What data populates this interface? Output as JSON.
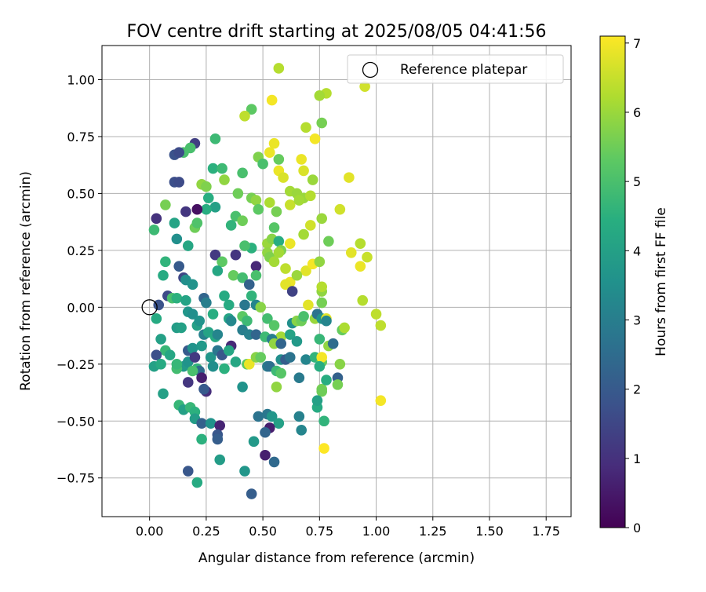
{
  "chart_data": {
    "type": "scatter",
    "title": "FOV centre drift starting at 2025/08/05 04:41:56",
    "xlabel": "Angular distance from reference (arcmin)",
    "ylabel": "Rotation from reference (arcmin)",
    "xlim": [
      -0.21,
      1.86
    ],
    "ylim": [
      -0.92,
      1.15
    ],
    "x_ticks": [
      "0.00",
      "0.25",
      "0.50",
      "0.75",
      "1.00",
      "1.25",
      "1.50",
      "1.75"
    ],
    "x_tick_values": [
      0,
      0.25,
      0.5,
      0.75,
      1.0,
      1.25,
      1.5,
      1.75
    ],
    "y_ticks": [
      "−0.75",
      "−0.50",
      "−0.25",
      "0.00",
      "0.25",
      "0.50",
      "0.75",
      "1.00"
    ],
    "y_tick_values": [
      -0.75,
      -0.5,
      -0.25,
      0,
      0.25,
      0.5,
      0.75,
      1.0
    ],
    "grid": true,
    "legend": {
      "position": "top-right",
      "label": "Reference platepar"
    },
    "reference_point": {
      "x": 0.0,
      "y": 0.0
    },
    "colorbar": {
      "label": "Hours from first FF file",
      "ticks": [
        "0",
        "1",
        "2",
        "3",
        "4",
        "5",
        "6",
        "7"
      ],
      "tick_values": [
        0,
        1,
        2,
        3,
        4,
        5,
        6,
        7
      ],
      "range": [
        0,
        7.1
      ],
      "colormap": "viridis"
    },
    "points": [
      [
        0.57,
        1.05,
        6.3
      ],
      [
        0.95,
        0.97,
        6.6
      ],
      [
        0.78,
        0.94,
        6.3
      ],
      [
        0.75,
        0.93,
        6.1
      ],
      [
        0.54,
        0.91,
        7.0
      ],
      [
        0.45,
        0.87,
        5.3
      ],
      [
        0.42,
        0.84,
        6.4
      ],
      [
        0.76,
        0.81,
        5.6
      ],
      [
        0.69,
        0.79,
        6.3
      ],
      [
        0.73,
        0.74,
        7.0
      ],
      [
        0.55,
        0.72,
        6.9
      ],
      [
        0.2,
        0.72,
        1.3
      ],
      [
        0.29,
        0.74,
        4.8
      ],
      [
        0.53,
        0.68,
        6.9
      ],
      [
        0.15,
        0.68,
        5.0
      ],
      [
        0.18,
        0.7,
        5.0
      ],
      [
        0.11,
        0.67,
        1.8
      ],
      [
        0.13,
        0.68,
        1.6
      ],
      [
        0.48,
        0.66,
        5.7
      ],
      [
        0.57,
        0.65,
        5.4
      ],
      [
        0.67,
        0.65,
        6.9
      ],
      [
        0.5,
        0.63,
        5.0
      ],
      [
        0.28,
        0.61,
        4.5
      ],
      [
        0.32,
        0.61,
        4.8
      ],
      [
        0.57,
        0.6,
        6.9
      ],
      [
        0.68,
        0.6,
        6.7
      ],
      [
        0.41,
        0.59,
        5.0
      ],
      [
        0.59,
        0.57,
        6.7
      ],
      [
        0.88,
        0.57,
        6.8
      ],
      [
        0.72,
        0.56,
        6.0
      ],
      [
        0.11,
        0.55,
        1.7
      ],
      [
        0.13,
        0.55,
        1.6
      ],
      [
        0.23,
        0.54,
        5.9
      ],
      [
        0.25,
        0.53,
        5.7
      ],
      [
        0.33,
        0.56,
        5.9
      ],
      [
        0.39,
        0.5,
        5.5
      ],
      [
        0.45,
        0.48,
        5.6
      ],
      [
        0.47,
        0.47,
        5.9
      ],
      [
        0.62,
        0.51,
        6.1
      ],
      [
        0.65,
        0.5,
        6.0
      ],
      [
        0.68,
        0.48,
        6.0
      ],
      [
        0.71,
        0.49,
        6.3
      ],
      [
        0.26,
        0.48,
        4.4
      ],
      [
        0.29,
        0.44,
        4.0
      ],
      [
        0.25,
        0.43,
        4.4
      ],
      [
        0.21,
        0.43,
        0.3
      ],
      [
        0.16,
        0.42,
        1.1
      ],
      [
        0.07,
        0.45,
        5.6
      ],
      [
        0.03,
        0.39,
        1.0
      ],
      [
        0.48,
        0.43,
        5.3
      ],
      [
        0.53,
        0.46,
        6.2
      ],
      [
        0.56,
        0.42,
        5.6
      ],
      [
        0.62,
        0.45,
        6.5
      ],
      [
        0.66,
        0.47,
        6.1
      ],
      [
        0.76,
        0.39,
        6.0
      ],
      [
        0.84,
        0.43,
        6.6
      ],
      [
        0.38,
        0.4,
        5.0
      ],
      [
        0.41,
        0.38,
        5.5
      ],
      [
        0.36,
        0.36,
        4.6
      ],
      [
        0.2,
        0.35,
        5.5
      ],
      [
        0.21,
        0.37,
        5.1
      ],
      [
        0.11,
        0.37,
        4.1
      ],
      [
        0.02,
        0.34,
        4.8
      ],
      [
        0.71,
        0.36,
        6.6
      ],
      [
        0.55,
        0.35,
        5.2
      ],
      [
        0.68,
        0.32,
        6.1
      ],
      [
        0.79,
        0.29,
        5.5
      ],
      [
        0.93,
        0.28,
        6.3
      ],
      [
        0.12,
        0.3,
        3.5
      ],
      [
        0.17,
        0.27,
        4.2
      ],
      [
        0.45,
        0.26,
        4.5
      ],
      [
        0.42,
        0.27,
        5.0
      ],
      [
        0.52,
        0.28,
        6.0
      ],
      [
        0.54,
        0.3,
        5.8
      ],
      [
        0.57,
        0.29,
        4.4
      ],
      [
        0.58,
        0.25,
        5.7
      ],
      [
        0.62,
        0.28,
        6.9
      ],
      [
        0.29,
        0.23,
        1.2
      ],
      [
        0.32,
        0.2,
        5.3
      ],
      [
        0.38,
        0.23,
        1.1
      ],
      [
        0.52,
        0.24,
        5.9
      ],
      [
        0.53,
        0.22,
        5.7
      ],
      [
        0.55,
        0.2,
        6.1
      ],
      [
        0.57,
        0.24,
        6.1
      ],
      [
        0.89,
        0.24,
        6.8
      ],
      [
        0.96,
        0.22,
        6.5
      ],
      [
        0.07,
        0.2,
        4.6
      ],
      [
        0.13,
        0.18,
        2.0
      ],
      [
        0.3,
        0.16,
        4.2
      ],
      [
        0.47,
        0.18,
        0.8
      ],
      [
        0.6,
        0.17,
        6.4
      ],
      [
        0.69,
        0.16,
        6.8
      ],
      [
        0.72,
        0.19,
        7.0
      ],
      [
        0.75,
        0.2,
        5.9
      ],
      [
        0.93,
        0.18,
        6.9
      ],
      [
        0.06,
        0.14,
        4.3
      ],
      [
        0.15,
        0.13,
        1.5
      ],
      [
        0.16,
        0.12,
        3.5
      ],
      [
        0.19,
        0.1,
        3.6
      ],
      [
        0.37,
        0.14,
        5.4
      ],
      [
        0.41,
        0.13,
        4.9
      ],
      [
        0.47,
        0.14,
        5.0
      ],
      [
        0.44,
        0.1,
        2.2
      ],
      [
        0.45,
        0.05,
        4.6
      ],
      [
        0.33,
        0.05,
        4.3
      ],
      [
        0.62,
        0.11,
        6.9
      ],
      [
        0.6,
        0.1,
        6.8
      ],
      [
        0.63,
        0.07,
        1.4
      ],
      [
        0.65,
        0.14,
        6.0
      ],
      [
        0.76,
        0.07,
        5.9
      ],
      [
        0.76,
        0.09,
        6.3
      ],
      [
        0.08,
        0.05,
        1.6
      ],
      [
        0.1,
        0.04,
        5.0
      ],
      [
        0.12,
        0.04,
        4.5
      ],
      [
        0.16,
        0.03,
        4.1
      ],
      [
        0.24,
        0.04,
        2.3
      ],
      [
        0.25,
        0.02,
        3.0
      ],
      [
        0.35,
        0.01,
        4.3
      ],
      [
        0.42,
        0.01,
        2.8
      ],
      [
        0.47,
        0.01,
        3.2
      ],
      [
        0.49,
        0.0,
        5.8
      ],
      [
        0.7,
        0.01,
        6.8
      ],
      [
        0.76,
        0.02,
        5.6
      ],
      [
        0.94,
        0.03,
        6.3
      ],
      [
        0.04,
        0.01,
        1.8
      ],
      [
        0.17,
        -0.02,
        3.7
      ],
      [
        0.19,
        -0.03,
        3.5
      ],
      [
        0.28,
        -0.03,
        4.4
      ],
      [
        0.35,
        -0.05,
        4.1
      ],
      [
        0.36,
        -0.06,
        3.3
      ],
      [
        0.41,
        -0.04,
        5.3
      ],
      [
        0.43,
        -0.06,
        4.8
      ],
      [
        0.52,
        -0.05,
        4.9
      ],
      [
        0.55,
        -0.08,
        5.2
      ],
      [
        0.63,
        -0.07,
        3.5
      ],
      [
        0.65,
        -0.06,
        5.8
      ],
      [
        0.67,
        -0.06,
        5.5
      ],
      [
        0.68,
        -0.04,
        5.0
      ],
      [
        0.73,
        -0.05,
        6.0
      ],
      [
        0.74,
        -0.03,
        2.7
      ],
      [
        0.76,
        -0.05,
        3.6
      ],
      [
        0.78,
        -0.05,
        6.8
      ],
      [
        0.78,
        -0.06,
        3.2
      ],
      [
        0.85,
        -0.1,
        5.4
      ],
      [
        0.86,
        -0.09,
        6.2
      ],
      [
        1.0,
        -0.03,
        6.4
      ],
      [
        1.02,
        -0.08,
        6.4
      ],
      [
        0.03,
        -0.05,
        4.3
      ],
      [
        0.12,
        -0.09,
        3.9
      ],
      [
        0.14,
        -0.09,
        4.0
      ],
      [
        0.21,
        -0.08,
        4.0
      ],
      [
        0.22,
        -0.06,
        3.6
      ],
      [
        0.41,
        -0.1,
        3.0
      ],
      [
        0.44,
        -0.12,
        3.1
      ],
      [
        0.47,
        -0.12,
        2.3
      ],
      [
        0.51,
        -0.13,
        4.8
      ],
      [
        0.58,
        -0.13,
        6.1
      ],
      [
        0.05,
        -0.14,
        4.0
      ],
      [
        0.24,
        -0.12,
        3.1
      ],
      [
        0.26,
        -0.11,
        4.1
      ],
      [
        0.29,
        -0.13,
        4.3
      ],
      [
        0.3,
        -0.12,
        3.2
      ],
      [
        0.36,
        -0.17,
        0.8
      ],
      [
        0.54,
        -0.14,
        3.0
      ],
      [
        0.55,
        -0.16,
        5.9
      ],
      [
        0.58,
        -0.16,
        2.3
      ],
      [
        0.62,
        -0.12,
        4.1
      ],
      [
        0.65,
        -0.15,
        3.8
      ],
      [
        0.75,
        -0.14,
        4.7
      ],
      [
        0.79,
        -0.17,
        5.9
      ],
      [
        0.81,
        -0.16,
        2.5
      ],
      [
        0.07,
        -0.19,
        4.7
      ],
      [
        0.09,
        -0.21,
        4.2
      ],
      [
        0.03,
        -0.21,
        1.7
      ],
      [
        0.15,
        -0.26,
        3.8
      ],
      [
        0.17,
        -0.24,
        3.6
      ],
      [
        0.17,
        -0.19,
        2.0
      ],
      [
        0.19,
        -0.18,
        3.6
      ],
      [
        0.2,
        -0.22,
        1.2
      ],
      [
        0.21,
        -0.27,
        4.6
      ],
      [
        0.22,
        -0.28,
        2.5
      ],
      [
        0.23,
        -0.17,
        3.8
      ],
      [
        0.27,
        -0.22,
        3.7
      ],
      [
        0.28,
        -0.26,
        3.5
      ],
      [
        0.3,
        -0.19,
        2.8
      ],
      [
        0.32,
        -0.21,
        1.9
      ],
      [
        0.33,
        -0.27,
        4.5
      ],
      [
        0.35,
        -0.19,
        4.2
      ],
      [
        0.38,
        -0.24,
        4.2
      ],
      [
        0.43,
        -0.25,
        5.3
      ],
      [
        0.44,
        -0.25,
        6.9
      ],
      [
        0.47,
        -0.22,
        5.8
      ],
      [
        0.49,
        -0.22,
        5.4
      ],
      [
        0.52,
        -0.26,
        2.9
      ],
      [
        0.53,
        -0.26,
        2.6
      ],
      [
        0.56,
        -0.28,
        4.8
      ],
      [
        0.58,
        -0.29,
        5.2
      ],
      [
        0.58,
        -0.23,
        3.5
      ],
      [
        0.6,
        -0.23,
        2.1
      ],
      [
        0.62,
        -0.22,
        2.7
      ],
      [
        0.69,
        -0.23,
        3.2
      ],
      [
        0.73,
        -0.22,
        4.6
      ],
      [
        0.76,
        -0.24,
        5.4
      ],
      [
        0.76,
        -0.22,
        7.0
      ],
      [
        0.75,
        -0.26,
        4.4
      ],
      [
        0.84,
        -0.25,
        5.8
      ],
      [
        0.02,
        -0.26,
        4.0
      ],
      [
        0.05,
        -0.25,
        4.3
      ],
      [
        0.12,
        -0.27,
        4.9
      ],
      [
        0.12,
        -0.25,
        4.7
      ],
      [
        0.19,
        -0.28,
        5.0
      ],
      [
        0.23,
        -0.31,
        0.6
      ],
      [
        0.17,
        -0.33,
        1.1
      ],
      [
        0.25,
        -0.37,
        0.9
      ],
      [
        0.24,
        -0.36,
        2.0
      ],
      [
        0.41,
        -0.35,
        3.6
      ],
      [
        0.56,
        -0.35,
        5.9
      ],
      [
        0.66,
        -0.31,
        2.9
      ],
      [
        0.76,
        -0.36,
        5.6
      ],
      [
        0.76,
        -0.37,
        5.5
      ],
      [
        0.78,
        -0.32,
        4.4
      ],
      [
        0.83,
        -0.31,
        2.2
      ],
      [
        0.83,
        -0.34,
        5.6
      ],
      [
        0.06,
        -0.38,
        4.0
      ],
      [
        0.13,
        -0.43,
        4.7
      ],
      [
        0.15,
        -0.45,
        4.0
      ],
      [
        0.18,
        -0.44,
        4.7
      ],
      [
        0.2,
        -0.46,
        4.5
      ],
      [
        0.2,
        -0.49,
        3.9
      ],
      [
        0.23,
        -0.51,
        2.2
      ],
      [
        0.27,
        -0.51,
        3.6
      ],
      [
        0.31,
        -0.52,
        0.7
      ],
      [
        0.48,
        -0.48,
        2.7
      ],
      [
        0.52,
        -0.47,
        2.8
      ],
      [
        0.54,
        -0.48,
        3.7
      ],
      [
        0.57,
        -0.51,
        4.0
      ],
      [
        0.66,
        -0.48,
        3.1
      ],
      [
        0.74,
        -0.44,
        4.3
      ],
      [
        0.74,
        -0.41,
        4.0
      ],
      [
        0.77,
        -0.5,
        4.6
      ],
      [
        0.53,
        -0.53,
        0.6
      ],
      [
        0.51,
        -0.55,
        2.3
      ],
      [
        0.67,
        -0.54,
        3.2
      ],
      [
        0.23,
        -0.58,
        4.5
      ],
      [
        0.3,
        -0.56,
        1.9
      ],
      [
        0.3,
        -0.58,
        2.1
      ],
      [
        0.46,
        -0.59,
        3.8
      ],
      [
        0.51,
        -0.65,
        0.6
      ],
      [
        0.55,
        -0.68,
        2.4
      ],
      [
        0.31,
        -0.67,
        3.9
      ],
      [
        0.42,
        -0.72,
        3.7
      ],
      [
        0.17,
        -0.72,
        1.9
      ],
      [
        0.21,
        -0.77,
        4.3
      ],
      [
        0.45,
        -0.82,
        2.1
      ],
      [
        0.77,
        -0.62,
        7.1
      ],
      [
        1.02,
        -0.41,
        7.0
      ]
    ]
  }
}
